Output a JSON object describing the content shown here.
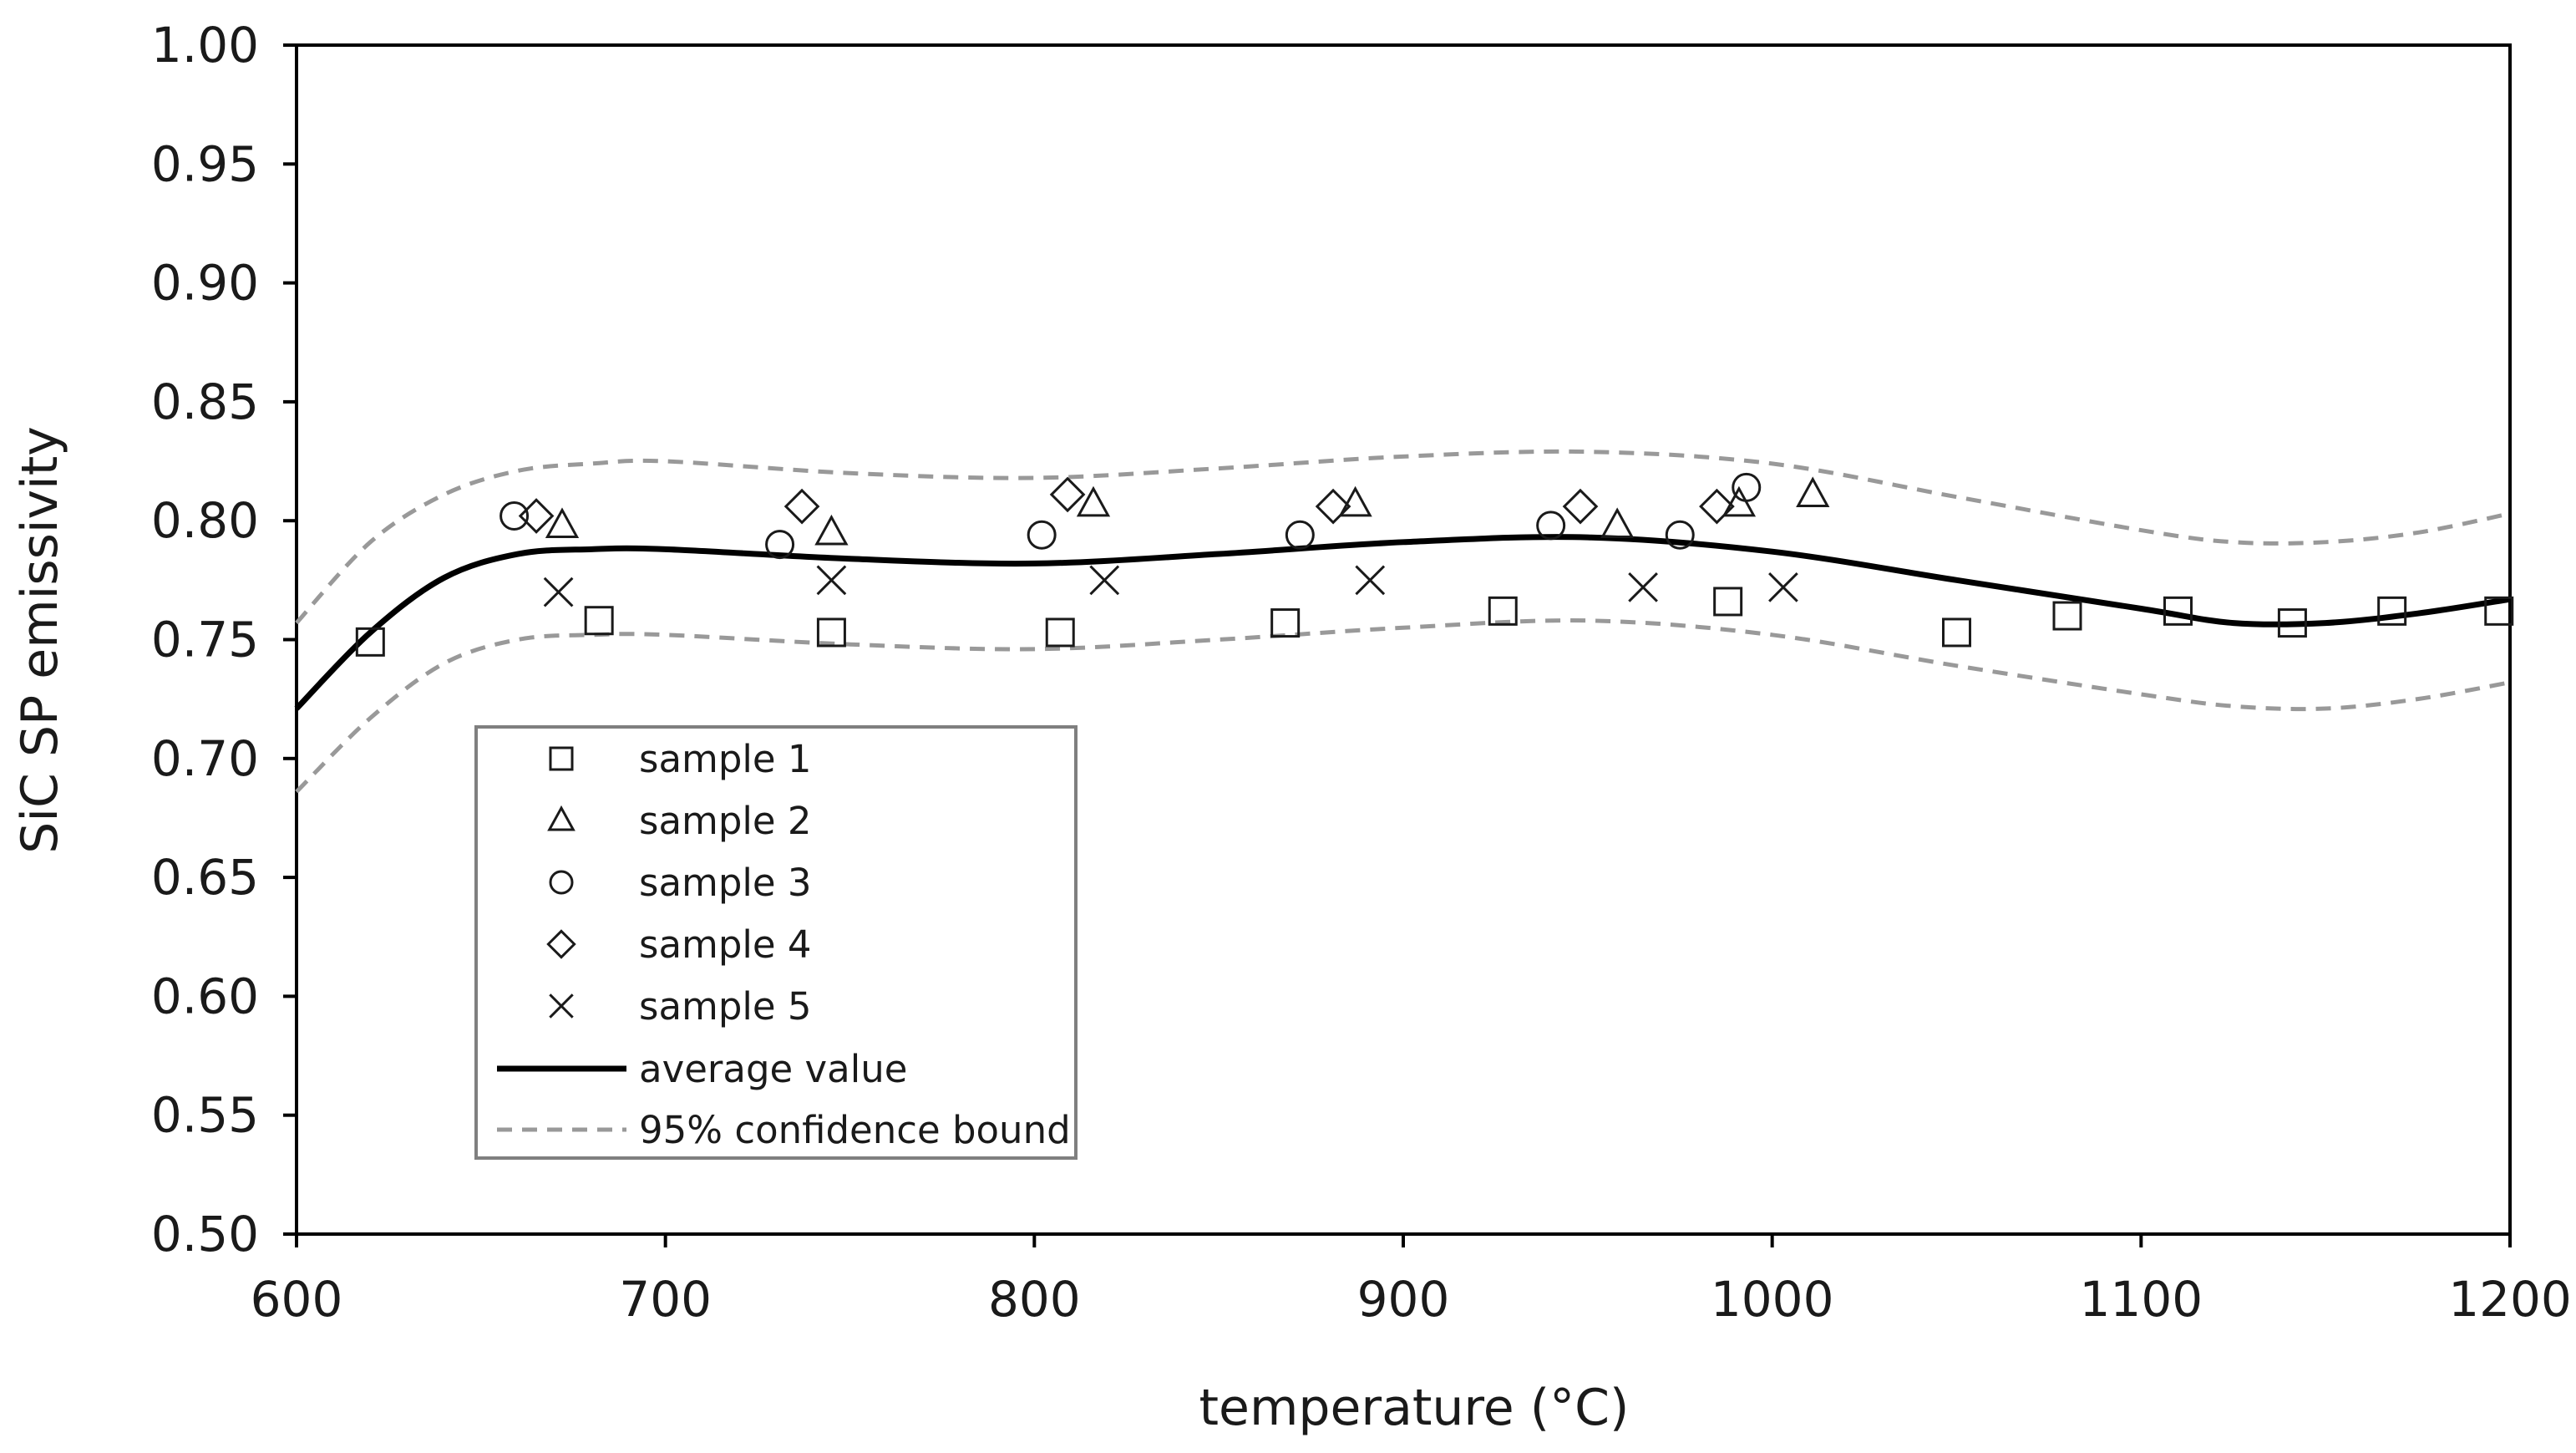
{
  "chart_data": {
    "type": "scatter",
    "title": "",
    "xlabel": "temperature (°C)",
    "ylabel": "SiC SP emissivity",
    "xlim": [
      600,
      1200
    ],
    "ylim": [
      0.5,
      1.0
    ],
    "xticks": [
      600,
      700,
      800,
      900,
      1000,
      1100,
      1200
    ],
    "yticks": [
      0.5,
      0.55,
      0.6,
      0.65,
      0.7,
      0.75,
      0.8,
      0.85,
      0.9,
      0.95,
      1.0
    ],
    "xtick_labels": [
      "600",
      "700",
      "800",
      "900",
      "1000",
      "1100",
      "1200"
    ],
    "ytick_labels": [
      "0.50",
      "0.55",
      "0.60",
      "0.65",
      "0.70",
      "0.75",
      "0.80",
      "0.85",
      "0.90",
      "0.95",
      "1.00"
    ],
    "grid": false,
    "legend_position": "lower-left",
    "series": [
      {
        "name": "sample 1",
        "marker": "square",
        "x": [
          620,
          682,
          745,
          807,
          868,
          927,
          988,
          1050,
          1080,
          1110,
          1141,
          1168,
          1197
        ],
        "y": [
          0.749,
          0.758,
          0.753,
          0.753,
          0.757,
          0.762,
          0.766,
          0.753,
          0.76,
          0.762,
          0.757,
          0.762,
          0.762
        ]
      },
      {
        "name": "sample 2",
        "marker": "triangle",
        "x": [
          672,
          745,
          816,
          887,
          958,
          991,
          1011
        ],
        "y": [
          0.798,
          0.795,
          0.807,
          0.807,
          0.798,
          0.807,
          0.811
        ]
      },
      {
        "name": "sample 3",
        "marker": "circle",
        "x": [
          659,
          731,
          802,
          872,
          940,
          975,
          993
        ],
        "y": [
          0.802,
          0.79,
          0.794,
          0.794,
          0.798,
          0.794,
          0.814
        ]
      },
      {
        "name": "sample 4",
        "marker": "diamond",
        "x": [
          665,
          737,
          809,
          881,
          948,
          985
        ],
        "y": [
          0.802,
          0.806,
          0.811,
          0.806,
          0.806,
          0.806
        ]
      },
      {
        "name": "sample 5",
        "marker": "x",
        "x": [
          671,
          745,
          819,
          891,
          965,
          1003
        ],
        "y": [
          0.77,
          0.775,
          0.775,
          0.775,
          0.772,
          0.772
        ]
      },
      {
        "name": "average value",
        "style": "solid",
        "x": [
          600,
          620,
          640,
          660,
          680,
          700,
          750,
          800,
          850,
          900,
          950,
          1000,
          1050,
          1100,
          1125,
          1150,
          1175,
          1200
        ],
        "y": [
          0.721,
          0.753,
          0.776,
          0.786,
          0.788,
          0.788,
          0.784,
          0.782,
          0.786,
          0.791,
          0.793,
          0.787,
          0.775,
          0.763,
          0.757,
          0.757,
          0.761,
          0.767
        ]
      },
      {
        "name": "95% confidence bound",
        "style": "dashed",
        "role": "upper",
        "x": [
          600,
          620,
          640,
          660,
          680,
          700,
          750,
          800,
          850,
          900,
          950,
          1000,
          1050,
          1100,
          1125,
          1150,
          1175,
          1200
        ],
        "y": [
          0.757,
          0.791,
          0.811,
          0.821,
          0.824,
          0.825,
          0.82,
          0.818,
          0.822,
          0.827,
          0.829,
          0.824,
          0.81,
          0.796,
          0.791,
          0.791,
          0.795,
          0.803
        ]
      },
      {
        "name": "95% confidence bound",
        "style": "dashed",
        "role": "lower",
        "x": [
          600,
          620,
          640,
          660,
          680,
          700,
          750,
          800,
          850,
          900,
          950,
          1000,
          1050,
          1100,
          1125,
          1150,
          1175,
          1200
        ],
        "y": [
          0.686,
          0.717,
          0.74,
          0.75,
          0.752,
          0.752,
          0.748,
          0.746,
          0.75,
          0.755,
          0.758,
          0.752,
          0.739,
          0.727,
          0.722,
          0.721,
          0.725,
          0.732
        ]
      }
    ],
    "legend": [
      {
        "label": "sample 1",
        "symbol": "square"
      },
      {
        "label": "sample 2",
        "symbol": "triangle"
      },
      {
        "label": "sample 3",
        "symbol": "circle"
      },
      {
        "label": "sample 4",
        "symbol": "diamond"
      },
      {
        "label": "sample 5",
        "symbol": "x"
      },
      {
        "label": "average value",
        "symbol": "solid-line"
      },
      {
        "label": "95% confidence bound",
        "symbol": "dashed-line"
      }
    ],
    "colors": {
      "marker": "#1a1a1a",
      "average": "#000000",
      "bound": "#999999",
      "frame": "#000000",
      "legend_border": "#7f7f7f"
    }
  }
}
